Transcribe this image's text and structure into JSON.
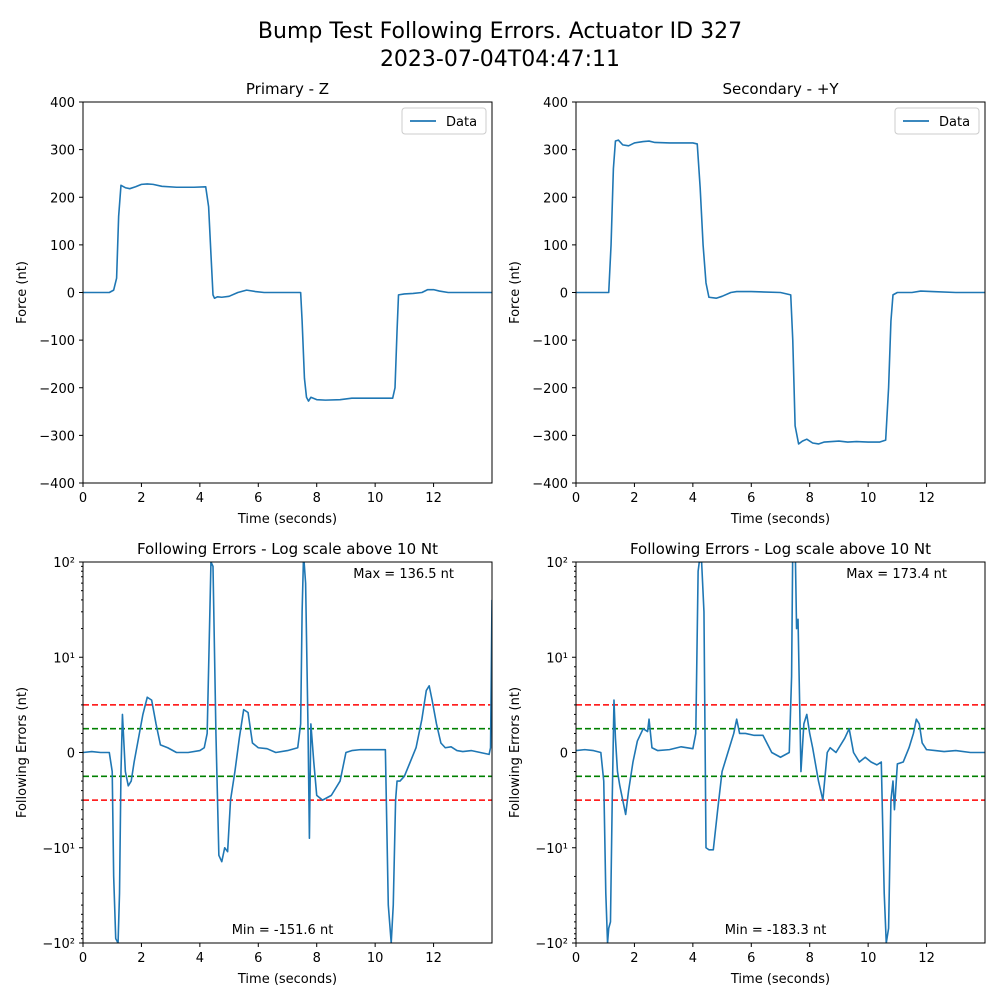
{
  "suptitle": {
    "line1": "Bump Test Following Errors. Actuator ID 327",
    "line2": "2023-07-04T04:47:11"
  },
  "colors": {
    "data": "#1f77b4",
    "red_limit": "#ff0000",
    "green_limit": "#008000",
    "axes": "#000000"
  },
  "chart_data": [
    {
      "id": "primary",
      "type": "line",
      "title": "Primary - Z",
      "xlabel": "Time (seconds)",
      "ylabel": "Force (nt)",
      "xlim": [
        0,
        14
      ],
      "ylim": [
        -400,
        400
      ],
      "xticks": [
        0,
        2,
        4,
        6,
        8,
        10,
        12
      ],
      "yticks": [
        -400,
        -300,
        -200,
        -100,
        0,
        100,
        200,
        300,
        400
      ],
      "legend": "upper-right",
      "series": [
        {
          "name": "Data",
          "x": [
            0,
            0.9,
            1.05,
            1.15,
            1.22,
            1.3,
            1.45,
            1.6,
            1.8,
            2.0,
            2.2,
            2.4,
            2.7,
            3.2,
            3.8,
            4.2,
            4.3,
            4.38,
            4.45,
            4.5,
            4.6,
            4.75,
            5.0,
            5.3,
            5.6,
            5.9,
            6.2,
            7.0,
            7.45,
            7.5,
            7.58,
            7.65,
            7.72,
            7.8,
            8.0,
            8.3,
            8.8,
            9.2,
            10.0,
            10.6,
            10.68,
            10.75,
            10.8,
            11.0,
            11.3,
            11.6,
            11.8,
            12.0,
            12.2,
            12.5,
            13.0,
            14.0
          ],
          "y": [
            0,
            0,
            5,
            30,
            160,
            225,
            220,
            218,
            222,
            227,
            228,
            227,
            223,
            221,
            221,
            222,
            180,
            80,
            -5,
            -12,
            -9,
            -10,
            -8,
            0,
            5,
            2,
            0,
            0,
            0,
            -60,
            -180,
            -220,
            -228,
            -220,
            -225,
            -226,
            -225,
            -222,
            -222,
            -222,
            -200,
            -80,
            -5,
            -3,
            -2,
            0,
            6,
            6,
            3,
            0,
            0,
            0
          ]
        }
      ]
    },
    {
      "id": "secondary",
      "type": "line",
      "title": "Secondary - +Y",
      "xlabel": "Time (seconds)",
      "ylabel": "Force (nt)",
      "xlim": [
        0,
        14
      ],
      "ylim": [
        -400,
        400
      ],
      "xticks": [
        0,
        2,
        4,
        6,
        8,
        10,
        12
      ],
      "yticks": [
        -400,
        -300,
        -200,
        -100,
        0,
        100,
        200,
        300,
        400
      ],
      "legend": "upper-right",
      "series": [
        {
          "name": "Data",
          "x": [
            0,
            1.0,
            1.12,
            1.2,
            1.28,
            1.35,
            1.45,
            1.6,
            1.8,
            2.0,
            2.3,
            2.5,
            2.7,
            3.2,
            4.0,
            4.15,
            4.25,
            4.35,
            4.45,
            4.55,
            4.8,
            5.0,
            5.3,
            5.5,
            6.0,
            7.0,
            7.35,
            7.42,
            7.5,
            7.62,
            7.75,
            7.9,
            8.1,
            8.3,
            8.5,
            9.0,
            9.3,
            9.6,
            10.0,
            10.4,
            10.6,
            10.7,
            10.78,
            10.85,
            11.0,
            11.5,
            11.8,
            12.2,
            13.0,
            14.0
          ],
          "y": [
            0,
            0,
            0,
            100,
            260,
            318,
            320,
            310,
            308,
            314,
            317,
            318,
            315,
            314,
            314,
            312,
            220,
            100,
            20,
            -10,
            -12,
            -8,
            0,
            2,
            2,
            0,
            -5,
            -100,
            -280,
            -318,
            -312,
            -308,
            -316,
            -318,
            -314,
            -312,
            -314,
            -313,
            -314,
            -314,
            -310,
            -200,
            -60,
            -5,
            0,
            0,
            3,
            2,
            0,
            0
          ]
        }
      ]
    },
    {
      "id": "primary-errors",
      "type": "line",
      "title": "Following Errors - Log scale above 10 Nt",
      "xlabel": "Time (seconds)",
      "ylabel": "Following Errors (nt)",
      "xlim": [
        0,
        14
      ],
      "ylim": [
        -100,
        100
      ],
      "yscale": "symlog, linear within ±10, log beyond",
      "yticks": [
        -100,
        -10,
        0,
        10,
        100
      ],
      "ytick_labels": [
        "−10²",
        "−10¹",
        "0",
        "10¹",
        "10²"
      ],
      "xticks": [
        0,
        2,
        4,
        6,
        8,
        10,
        12
      ],
      "hlines": [
        {
          "y": 5,
          "color": "red",
          "style": "dashed"
        },
        {
          "y": 2.5,
          "color": "green",
          "style": "dashed"
        },
        {
          "y": -2.5,
          "color": "green",
          "style": "dashed"
        },
        {
          "y": -5,
          "color": "red",
          "style": "dashed"
        }
      ],
      "annotations": {
        "max": "Max = 136.5 nt",
        "min": "Min = -151.6 nt"
      },
      "series": [
        {
          "x": [
            0,
            0.3,
            0.6,
            0.9,
            1.0,
            1.05,
            1.12,
            1.2,
            1.25,
            1.3,
            1.35,
            1.45,
            1.55,
            1.65,
            1.75,
            1.9,
            2.05,
            2.2,
            2.35,
            2.5,
            2.65,
            2.9,
            3.2,
            3.6,
            4.0,
            4.15,
            4.25,
            4.33,
            4.38,
            4.45,
            4.55,
            4.65,
            4.75,
            4.85,
            4.95,
            5.05,
            5.2,
            5.35,
            5.5,
            5.65,
            5.8,
            6.0,
            6.3,
            6.6,
            7.0,
            7.35,
            7.45,
            7.5,
            7.55,
            7.62,
            7.7,
            7.75,
            7.8,
            7.9,
            8.0,
            8.2,
            8.5,
            8.8,
            9.0,
            9.2,
            9.5,
            10.0,
            10.35,
            10.45,
            10.55,
            10.62,
            10.7,
            10.75,
            10.85,
            11.0,
            11.2,
            11.4,
            11.6,
            11.75,
            11.85,
            11.95,
            12.1,
            12.25,
            12.4,
            12.6,
            12.8,
            13.0,
            13.3,
            13.6,
            13.9,
            13.95,
            14.0
          ],
          "y": [
            0,
            0.1,
            0,
            0,
            -2,
            -20,
            -90,
            -100,
            -30,
            -2,
            4,
            -2,
            -3.5,
            -3,
            -1,
            1.5,
            4,
            5.8,
            5.5,
            3,
            0.8,
            0.5,
            0,
            0,
            0.2,
            0.5,
            2,
            20,
            100,
            90,
            2,
            -12,
            -14,
            -10,
            -11,
            -5,
            -2,
            1.5,
            4.5,
            4.2,
            1,
            0.5,
            0.4,
            0,
            0.2,
            0.5,
            3,
            30,
            120,
            60,
            3,
            -9,
            3,
            -1,
            -4.5,
            -5,
            -4.5,
            -3,
            0,
            0.2,
            0.3,
            0.3,
            0.3,
            -40,
            -100,
            -40,
            -5,
            -3,
            -3,
            -2.5,
            -1,
            0.5,
            3.5,
            6.5,
            7,
            5.5,
            3,
            1,
            0.5,
            0.6,
            0.2,
            0.1,
            0.2,
            0,
            -0.2,
            0.5,
            40
          ]
        }
      ]
    },
    {
      "id": "secondary-errors",
      "type": "line",
      "title": "Following Errors - Log scale above 10 Nt",
      "xlabel": "Time (seconds)",
      "ylabel": "Following Errors (nt)",
      "xlim": [
        0,
        14
      ],
      "ylim": [
        -100,
        100
      ],
      "yscale": "symlog, linear within ±10, log beyond",
      "yticks": [
        -100,
        -10,
        0,
        10,
        100
      ],
      "ytick_labels": [
        "−10²",
        "−10¹",
        "0",
        "10¹",
        "10²"
      ],
      "xticks": [
        0,
        2,
        4,
        6,
        8,
        10,
        12
      ],
      "hlines": [
        {
          "y": 5,
          "color": "red",
          "style": "dashed"
        },
        {
          "y": 2.5,
          "color": "green",
          "style": "dashed"
        },
        {
          "y": -2.5,
          "color": "green",
          "style": "dashed"
        },
        {
          "y": -5,
          "color": "red",
          "style": "dashed"
        }
      ],
      "annotations": {
        "max": "Max = 173.4 nt",
        "min": "Min = -183.3 nt"
      },
      "series": [
        {
          "x": [
            0,
            0.3,
            0.6,
            0.85,
            0.95,
            1.02,
            1.08,
            1.12,
            1.18,
            1.24,
            1.3,
            1.35,
            1.42,
            1.5,
            1.6,
            1.7,
            1.8,
            1.95,
            2.1,
            2.3,
            2.45,
            2.5,
            2.6,
            2.8,
            3.2,
            3.6,
            4.0,
            4.1,
            4.18,
            4.22,
            4.3,
            4.38,
            4.45,
            4.55,
            4.7,
            4.85,
            5.0,
            5.2,
            5.4,
            5.5,
            5.6,
            5.8,
            6.1,
            6.4,
            6.7,
            7.0,
            7.3,
            7.38,
            7.42,
            7.5,
            7.55,
            7.6,
            7.7,
            7.8,
            7.9,
            8.0,
            8.1,
            8.3,
            8.45,
            8.6,
            8.7,
            8.9,
            9.2,
            9.35,
            9.5,
            9.7,
            9.9,
            10.1,
            10.3,
            10.45,
            10.55,
            10.62,
            10.7,
            10.78,
            10.85,
            10.9,
            11.0,
            11.2,
            11.4,
            11.55,
            11.65,
            11.75,
            11.85,
            12.0,
            12.3,
            12.6,
            13.0,
            13.5,
            14.0
          ],
          "y": [
            0.2,
            0.3,
            0.2,
            0,
            -3,
            -30,
            -100,
            -70,
            -60,
            -5,
            5.5,
            1.5,
            -2,
            -3.5,
            -5,
            -6.5,
            -4,
            -1,
            1.2,
            2.5,
            2.2,
            3.5,
            0.5,
            0.2,
            0.3,
            0.6,
            0.4,
            2,
            80,
            100,
            100,
            30,
            -10,
            -10.5,
            -10.5,
            -6,
            -2,
            0,
            2,
            3.5,
            2,
            2,
            1.8,
            1.8,
            0,
            -0.5,
            0,
            8,
            150,
            170,
            20,
            25,
            -2,
            3,
            4,
            2,
            0.5,
            -3,
            -5,
            0,
            0.5,
            0,
            1.5,
            2.5,
            0,
            -1,
            -0.5,
            -1,
            -1.3,
            -1,
            -30,
            -100,
            -70,
            -5,
            -3,
            -6,
            -1.2,
            -1,
            0.5,
            2,
            3.5,
            3,
            1,
            0.3,
            0.2,
            0.1,
            0.2,
            0,
            0
          ]
        }
      ]
    }
  ]
}
